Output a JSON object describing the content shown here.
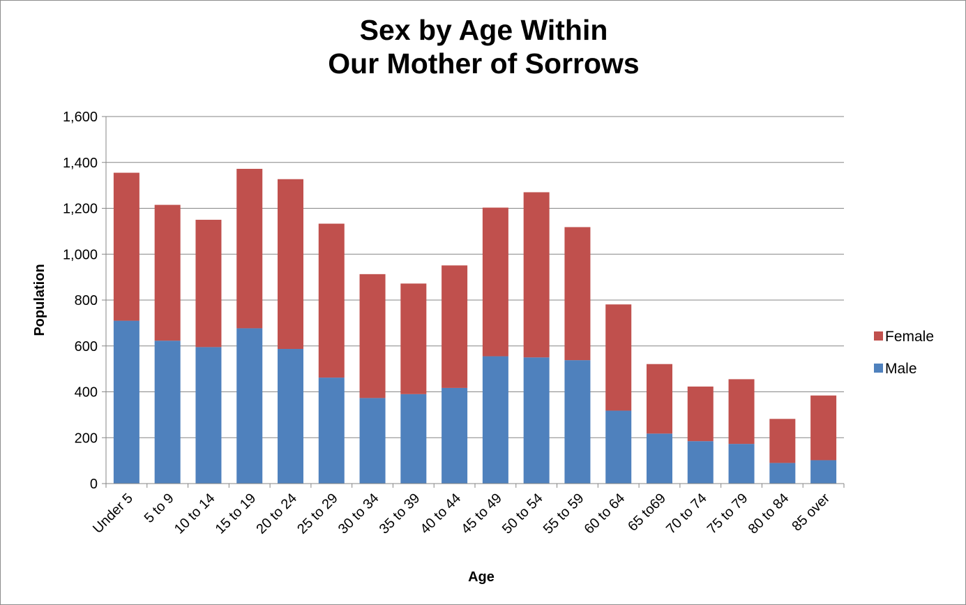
{
  "chart_data": {
    "type": "bar",
    "stacked": true,
    "title_lines": [
      "Sex by Age Within",
      "Our Mother of Sorrows"
    ],
    "xlabel": "Age",
    "ylabel": "Population",
    "ylim": [
      0,
      1600
    ],
    "yticks": [
      0,
      200,
      400,
      600,
      800,
      1000,
      1200,
      1400,
      1600
    ],
    "ytick_labels": [
      "0",
      "200",
      "400",
      "600",
      "800",
      "1,000",
      "1,200",
      "1,400",
      "1,600"
    ],
    "grid": true,
    "legend_position": "right",
    "categories": [
      "Under 5",
      "5 to 9",
      "10 to 14",
      "15 to 19",
      "20 to 24",
      "25 to 29",
      "30 to 34",
      "35 to 39",
      "40 to 44",
      "45 to 49",
      "50 to 54",
      "55 to 59",
      "60 to 64",
      "65 to69",
      "70 to 74",
      "75 to 79",
      "80 to 84",
      "85 over"
    ],
    "series": [
      {
        "name": "Male",
        "color": "#4f81bd",
        "values": [
          710,
          623,
          595,
          677,
          587,
          462,
          373,
          390,
          417,
          555,
          550,
          538,
          318,
          218,
          185,
          173,
          90,
          102
        ]
      },
      {
        "name": "Female",
        "color": "#c0504d",
        "values": [
          645,
          592,
          555,
          695,
          740,
          671,
          540,
          482,
          534,
          648,
          720,
          580,
          463,
          303,
          238,
          282,
          192,
          282
        ]
      }
    ],
    "legend_order": [
      "Female",
      "Male"
    ]
  }
}
